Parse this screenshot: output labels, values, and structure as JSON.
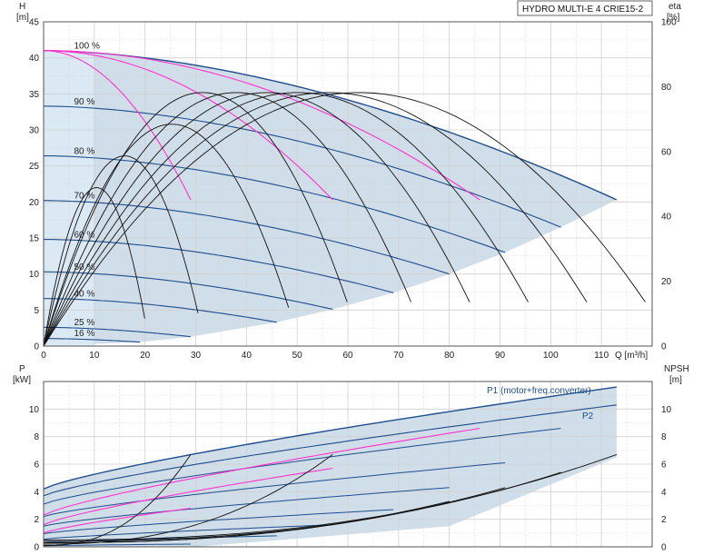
{
  "title": "HYDRO MULTI-E 4 CRIE15-2",
  "colors": {
    "envelope_fill": "#c8d8e6",
    "envelope_light": "#dceaf5",
    "envelope_edge": "#1f4e8c",
    "speed_curve": "#1f4e8c",
    "nqe_curve": "#ff33cc",
    "eta_curve": "#111111",
    "grid": "#d0d0d0",
    "axis": "#555555"
  },
  "top_chart": {
    "y_title": "H",
    "y_unit": "[m]",
    "y2_title": "eta",
    "y2_unit": "[%]",
    "x_unit": "Q [m³/h]",
    "x_ticks": [
      "0",
      "10",
      "20",
      "30",
      "40",
      "50",
      "60",
      "70",
      "80",
      "90",
      "100",
      "110"
    ],
    "y_ticks": [
      "0",
      "5",
      "10",
      "15",
      "20",
      "25",
      "30",
      "35",
      "40",
      "45"
    ],
    "y2_ticks": [
      "0",
      "20",
      "40",
      "60",
      "80",
      "100"
    ],
    "speed_labels": [
      "100 %",
      "90 %",
      "80 %",
      "70 %",
      "60 %",
      "50 %",
      "40 %",
      "25 %",
      "16 %"
    ]
  },
  "bottom_chart": {
    "y_title": "P",
    "y_unit": "[kW]",
    "y2_title": "NPSH",
    "y2_unit": "[m]",
    "y_ticks": [
      "0",
      "2",
      "4",
      "6",
      "8",
      "10"
    ],
    "y2_ticks": [
      "0",
      "2",
      "4",
      "6",
      "8",
      "10"
    ],
    "p1_label": "P1 (motor+freq.converter)",
    "p2_label": "P2"
  },
  "chart_data": [
    {
      "type": "line",
      "title": "HYDRO MULTI-E 4 CRIE15-2",
      "xlabel": "Q [m³/h]",
      "ylabel": "H [m]",
      "y2label": "eta [%]",
      "xlim": [
        0,
        120
      ],
      "ylim": [
        0,
        45
      ],
      "y2lim": [
        0,
        100
      ],
      "grid": true,
      "series": [
        {
          "name": "100 %",
          "qmax": 113,
          "h0": 41.0,
          "hend": 20.3
        },
        {
          "name": "90 %",
          "qmax": 102,
          "h0": 33.3,
          "hend": 16.5
        },
        {
          "name": "80 %",
          "qmax": 91,
          "h0": 26.4,
          "hend": 13.0
        },
        {
          "name": "70 %",
          "qmax": 80,
          "h0": 20.2,
          "hend": 10.0
        },
        {
          "name": "60 %",
          "qmax": 69,
          "h0": 14.8,
          "hend": 7.4
        },
        {
          "name": "50 %",
          "qmax": 57,
          "h0": 10.3,
          "hend": 5.1
        },
        {
          "name": "40 %",
          "qmax": 46,
          "h0": 6.6,
          "hend": 3.3
        },
        {
          "name": "25 %",
          "qmax": 29,
          "h0": 2.6,
          "hend": 1.3
        },
        {
          "name": "16 %",
          "qmax": 19,
          "h0": 1.05,
          "hend": 0.55
        }
      ],
      "eta_curves_qmax": [
        113,
        102,
        91,
        80,
        69,
        57,
        46,
        29,
        19
      ],
      "eta_peak_pct": 80,
      "nqe_curves": [
        {
          "q_end": 29,
          "h_end": 20.3
        },
        {
          "q_end": 57,
          "h_end": 20.3
        },
        {
          "q_end": 86,
          "h_end": 20.3
        }
      ]
    },
    {
      "type": "line",
      "ylabel": "P [kW]",
      "y2label": "NPSH [m]",
      "xlim": [
        0,
        120
      ],
      "ylim": [
        0,
        12
      ],
      "y2lim": [
        0,
        12
      ],
      "grid": true,
      "series": [
        {
          "name": "P1 (motor+freq.converter)",
          "qmax": 113,
          "p0": 4.2,
          "pend": 11.6
        },
        {
          "name": "P2",
          "qmax": 113,
          "p0": 3.7,
          "pend": 10.3
        }
      ],
      "speed_power_curves": [
        {
          "qmax": 102,
          "p0": 3.1,
          "pend": 8.6
        },
        {
          "qmax": 91,
          "p0": 2.2,
          "pend": 6.1
        },
        {
          "qmax": 80,
          "p0": 1.5,
          "pend": 4.3
        },
        {
          "qmax": 69,
          "p0": 0.95,
          "pend": 2.7
        },
        {
          "qmax": 57,
          "p0": 0.55,
          "pend": 1.6
        },
        {
          "qmax": 46,
          "p0": 0.3,
          "pend": 0.8
        },
        {
          "qmax": 29,
          "p0": 0.08,
          "pend": 0.2
        }
      ],
      "npsh_curves": [
        {
          "qmax": 113,
          "n0": 0.5,
          "nend": 6.7
        },
        {
          "qmax": 102,
          "n0": 0.4,
          "nend": 5.4
        },
        {
          "qmax": 91,
          "n0": 0.3,
          "nend": 4.3
        },
        {
          "qmax": 80,
          "n0": 0.3,
          "nend": 3.3
        },
        {
          "qmax": 57,
          "n0": 0.2,
          "nend": 6.7
        },
        {
          "qmax": 29,
          "n0": 0.1,
          "nend": 6.7
        }
      ]
    }
  ]
}
